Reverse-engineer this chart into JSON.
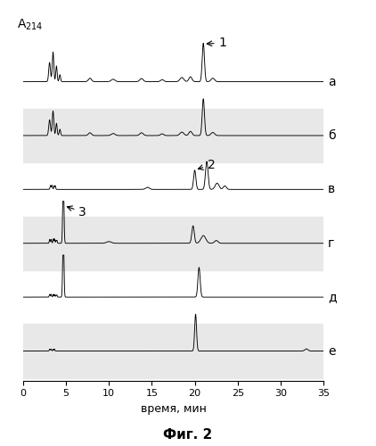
{
  "xlabel": "время, мин",
  "caption": "Фиг. 2",
  "xlim": [
    0,
    35
  ],
  "trace_labels": [
    "а",
    "б",
    "в",
    "г",
    "д",
    "е"
  ],
  "background_color": "#ffffff",
  "line_color": "#000000",
  "band_color": "#e8e8e8",
  "annotation1": "1",
  "annotation2": "2",
  "annotation3": "3",
  "xticks": [
    0,
    5,
    10,
    15,
    20,
    25,
    30,
    35
  ]
}
